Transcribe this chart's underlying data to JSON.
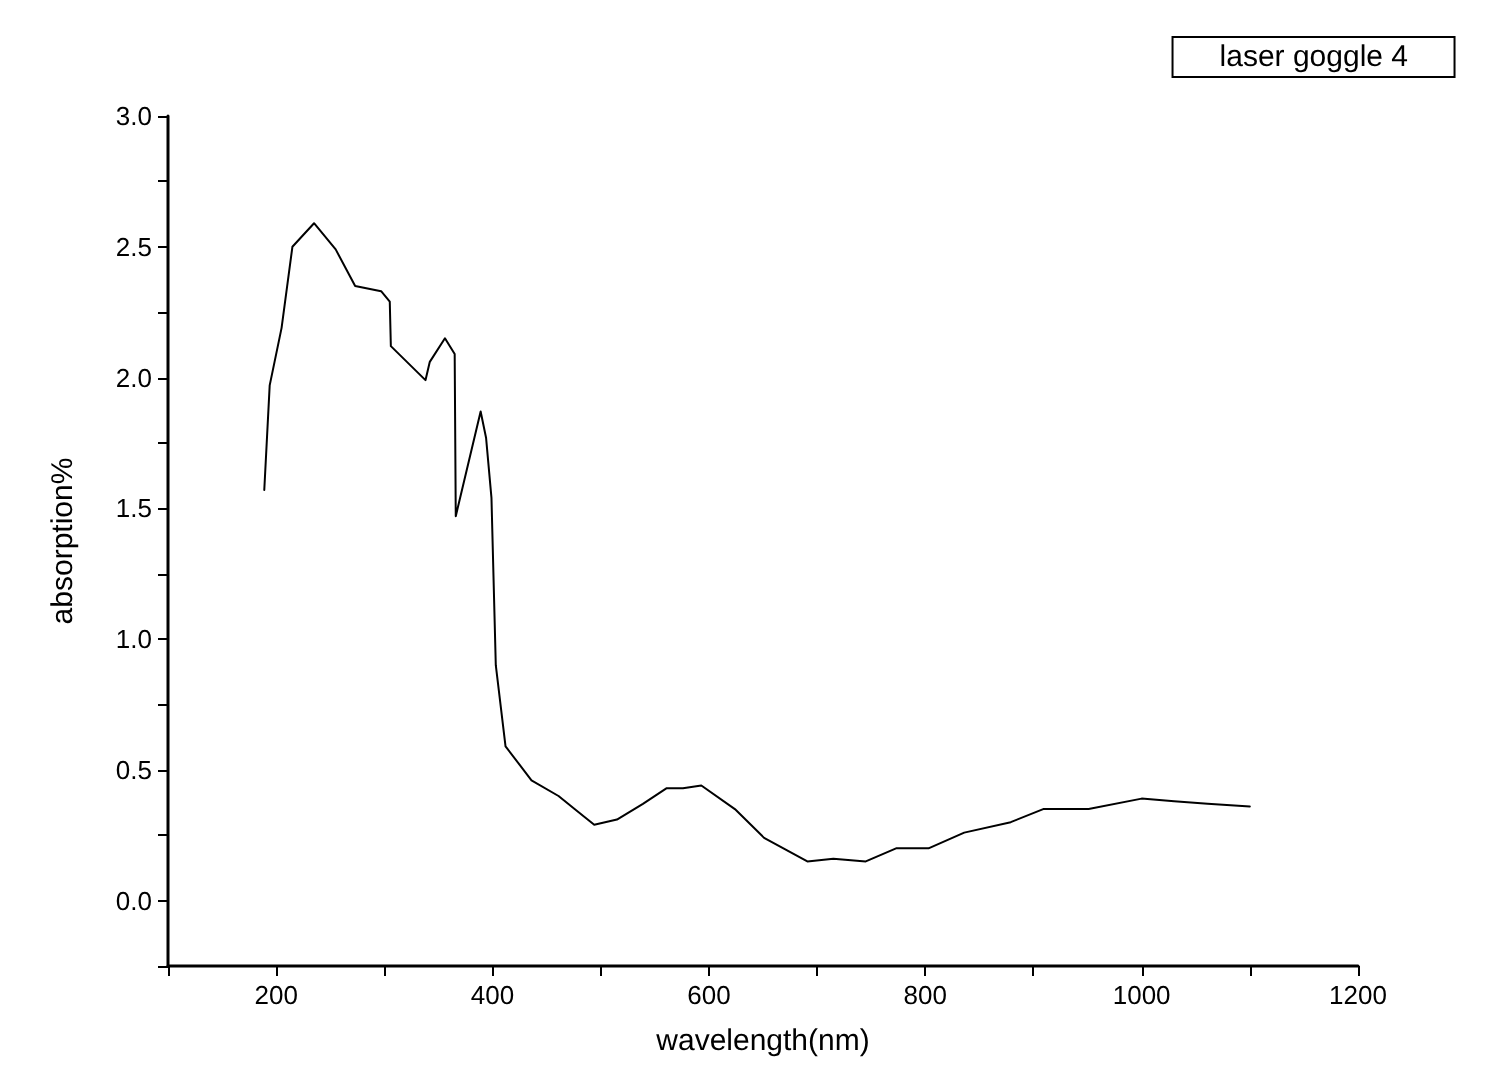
{
  "chart_data": {
    "type": "line",
    "title": "laser goggle 4",
    "xlabel": "wavelength(nm)",
    "ylabel": "absorption%",
    "x": [
      189,
      194,
      205,
      215,
      235,
      255,
      273,
      297,
      305,
      306,
      338,
      342,
      356,
      365,
      366,
      389,
      394,
      399,
      403,
      412,
      436,
      461,
      479,
      494,
      515,
      539,
      561,
      576,
      593,
      624,
      651,
      691,
      715,
      745,
      773,
      803,
      836,
      879,
      909,
      951,
      1000,
      1030,
      1061,
      1100
    ],
    "series": [
      {
        "color": "#000000",
        "values": [
          1.57,
          1.97,
          2.19,
          2.5,
          2.59,
          2.49,
          2.35,
          2.33,
          2.29,
          2.12,
          1.99,
          2.06,
          2.15,
          2.09,
          1.47,
          1.87,
          1.77,
          1.54,
          0.9,
          0.59,
          0.46,
          0.4,
          0.34,
          0.29,
          0.31,
          0.37,
          0.43,
          0.43,
          0.44,
          0.35,
          0.24,
          0.15,
          0.16,
          0.15,
          0.2,
          0.2,
          0.26,
          0.3,
          0.35,
          0.35,
          0.39,
          0.38,
          0.37,
          0.36
        ]
      }
    ],
    "xlim": [
      100,
      1200
    ],
    "xticks": [
      {
        "value": 100,
        "label": null
      },
      200,
      {
        "value": 300,
        "label": null
      },
      400,
      {
        "value": 500,
        "label": null
      },
      600,
      {
        "value": 700,
        "label": null
      },
      800,
      {
        "value": 900,
        "label": null
      },
      1000,
      {
        "value": 1100,
        "label": null
      },
      1200
    ],
    "ylim": [
      -0.25,
      3.0
    ],
    "yticks": [
      {
        "value": -0.25,
        "label": null
      },
      {
        "value": 0,
        "label": "0.0"
      },
      {
        "value": 0.25,
        "label": null
      },
      {
        "value": 0.5,
        "label": "0.5"
      },
      {
        "value": 0.75,
        "label": null
      },
      {
        "value": 1,
        "label": "1.0"
      },
      {
        "value": 1.25,
        "label": null
      },
      {
        "value": 1.5,
        "label": "1.5"
      },
      {
        "value": 1.75,
        "label": null
      },
      {
        "value": 2,
        "label": "2.0"
      },
      {
        "value": 2.25,
        "label": null
      },
      {
        "value": 2.5,
        "label": "2.5"
      },
      {
        "value": 2.75,
        "label": null
      },
      {
        "value": 3,
        "label": "3.0"
      }
    ],
    "grid": false,
    "marker": "none",
    "line_style": "solid"
  }
}
